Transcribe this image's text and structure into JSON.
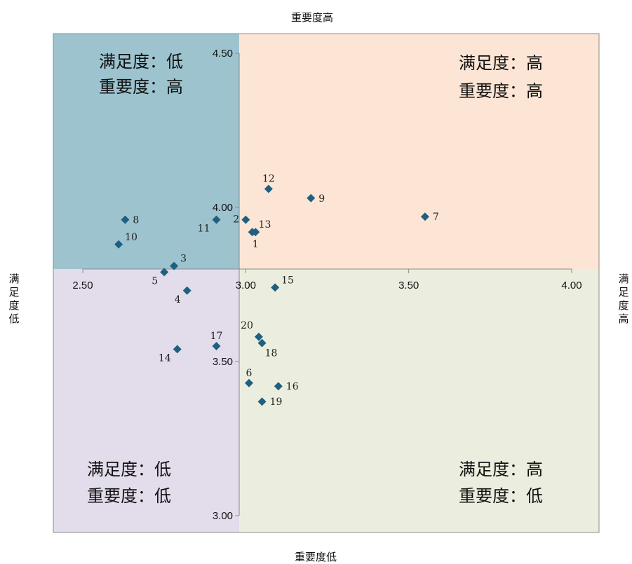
{
  "chart_data": {
    "type": "scatter",
    "title": "",
    "x_axis": {
      "range": [
        2.5,
        4.0
      ],
      "ticks": [
        "2.50",
        "3.00",
        "3.50",
        "4.00"
      ],
      "cross_at_y": 3.8
    },
    "y_axis": {
      "range": [
        3.0,
        4.5
      ],
      "ticks": [
        "3.00",
        "3.50",
        "4.00",
        "4.50"
      ],
      "cross_at_x": 2.98
    },
    "edge_labels": {
      "top": "重要度高",
      "bottom": "重要度低",
      "left": "满足度低",
      "right": "满足度高"
    },
    "quadrants": [
      {
        "id": "top-left",
        "color": "#9dc3cf",
        "lines": [
          "满足度：低",
          "重要度：高"
        ]
      },
      {
        "id": "top-right",
        "color": "#fde5d5",
        "lines": [
          "满足度：高",
          "重要度：高"
        ]
      },
      {
        "id": "bottom-left",
        "color": "#e3dcea",
        "lines": [
          "满足度：低",
          "重要度：低"
        ]
      },
      {
        "id": "bottom-right",
        "color": "#ebeedf",
        "lines": [
          "满足度：高",
          "重要度：低"
        ]
      }
    ],
    "marker_color": "#1f5f80",
    "points": [
      {
        "label": "1",
        "x": 3.03,
        "y": 3.92,
        "pos": "below"
      },
      {
        "label": "2",
        "x": 3.0,
        "y": 3.96,
        "pos": "left"
      },
      {
        "label": "3",
        "x": 2.78,
        "y": 3.81,
        "pos": "above-right"
      },
      {
        "label": "4",
        "x": 2.82,
        "y": 3.73,
        "pos": "below-left"
      },
      {
        "label": "5",
        "x": 2.75,
        "y": 3.79,
        "pos": "below-left"
      },
      {
        "label": "6",
        "x": 3.01,
        "y": 3.43,
        "pos": "above"
      },
      {
        "label": "7",
        "x": 3.55,
        "y": 3.97,
        "pos": "right"
      },
      {
        "label": "8",
        "x": 2.63,
        "y": 3.96,
        "pos": "right"
      },
      {
        "label": "9",
        "x": 3.2,
        "y": 4.03,
        "pos": "right"
      },
      {
        "label": "10",
        "x": 2.61,
        "y": 3.88,
        "pos": "above-right"
      },
      {
        "label": "11",
        "x": 2.91,
        "y": 3.96,
        "pos": "below-left"
      },
      {
        "label": "12",
        "x": 3.07,
        "y": 4.06,
        "pos": "above"
      },
      {
        "label": "13",
        "x": 3.02,
        "y": 3.92,
        "pos": "above-right"
      },
      {
        "label": "14",
        "x": 2.79,
        "y": 3.54,
        "pos": "below-left"
      },
      {
        "label": "15",
        "x": 3.09,
        "y": 3.74,
        "pos": "above-right"
      },
      {
        "label": "16",
        "x": 3.1,
        "y": 3.42,
        "pos": "right"
      },
      {
        "label": "17",
        "x": 2.91,
        "y": 3.55,
        "pos": "above"
      },
      {
        "label": "18",
        "x": 3.05,
        "y": 3.56,
        "pos": "below-right"
      },
      {
        "label": "19",
        "x": 3.05,
        "y": 3.37,
        "pos": "right"
      },
      {
        "label": "20",
        "x": 3.04,
        "y": 3.58,
        "pos": "above-left"
      }
    ]
  }
}
